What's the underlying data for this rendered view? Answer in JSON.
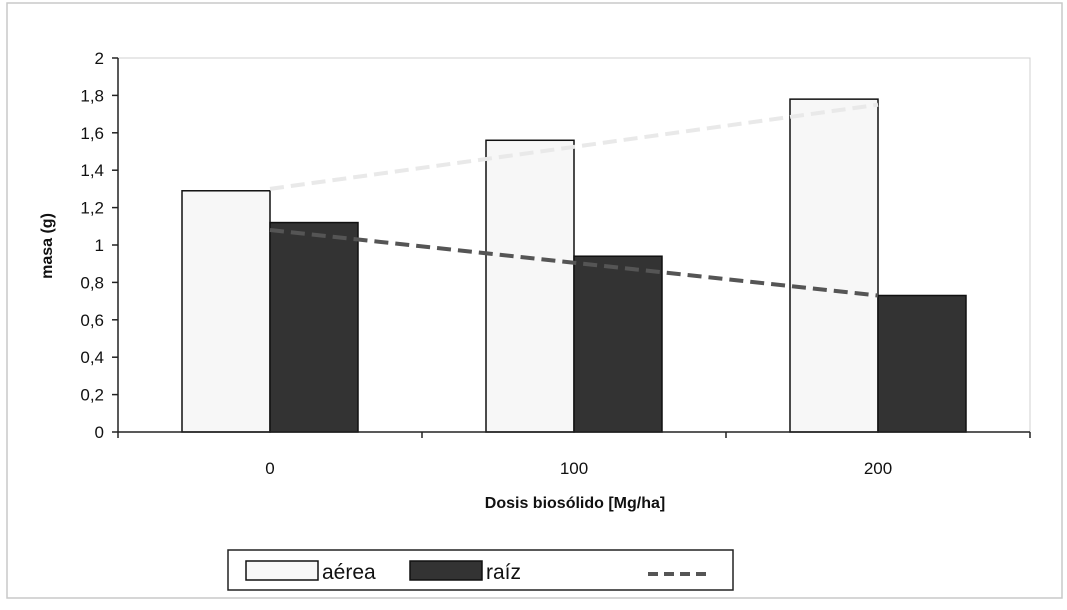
{
  "chart_data": {
    "type": "bar",
    "title": "",
    "xlabel": "Dosis biosólido [Mg/ha]",
    "ylabel": "masa (g)",
    "categories": [
      "0",
      "100",
      "200"
    ],
    "ylim": [
      0,
      2
    ],
    "yticks": [
      "0",
      "0,2",
      "0,4",
      "0,6",
      "0,8",
      "1",
      "1,2",
      "1,4",
      "1,6",
      "1,8",
      "2"
    ],
    "grid": false,
    "legend_position": "bottom",
    "series": [
      {
        "name": "aérea",
        "values": [
          1.29,
          1.56,
          1.78
        ],
        "color": "#f7f7f7",
        "stroke": "#111111"
      },
      {
        "name": "raíz",
        "values": [
          1.12,
          0.94,
          0.73
        ],
        "color": "#333333",
        "stroke": "#111111"
      }
    ],
    "trendlines": [
      {
        "series": "aérea",
        "style": "dashed",
        "color": "#e9e9e9",
        "from": [
          0,
          1.3
        ],
        "to": [
          2,
          1.75
        ]
      },
      {
        "series": "raíz",
        "style": "dashed",
        "color": "#555555",
        "from": [
          0,
          1.08
        ],
        "to": [
          2,
          0.73
        ]
      }
    ]
  }
}
